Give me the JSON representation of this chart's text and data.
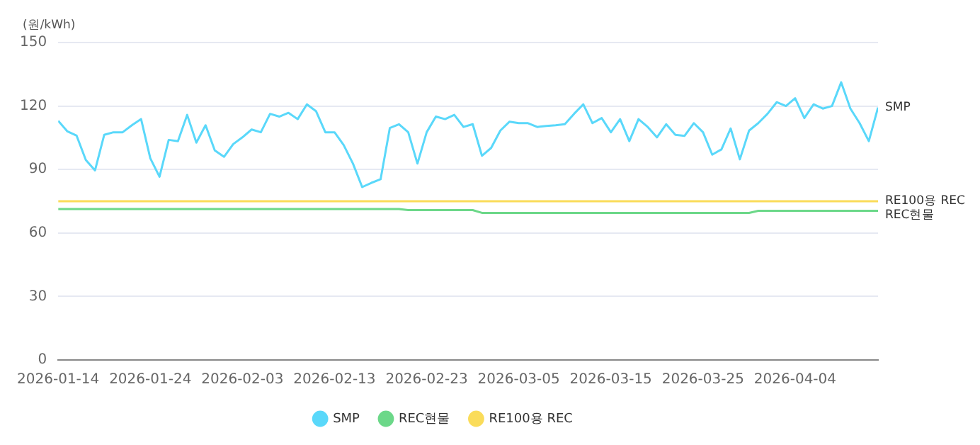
{
  "chart_data": {
    "type": "line",
    "ylabel": "(원/kWh)",
    "x": [
      "2026-01-14",
      "2026-01-15",
      "2026-01-16",
      "2026-01-17",
      "2026-01-18",
      "2026-01-19",
      "2026-01-20",
      "2026-01-21",
      "2026-01-22",
      "2026-01-23",
      "2026-01-24",
      "2026-01-25",
      "2026-01-26",
      "2026-01-27",
      "2026-01-28",
      "2026-01-29",
      "2026-01-30",
      "2026-01-31",
      "2026-02-01",
      "2026-02-02",
      "2026-02-03",
      "2026-02-04",
      "2026-02-05",
      "2026-02-06",
      "2026-02-07",
      "2026-02-08",
      "2026-02-09",
      "2026-02-10",
      "2026-02-11",
      "2026-02-12",
      "2026-02-13",
      "2026-02-14",
      "2026-02-15",
      "2026-02-16",
      "2026-02-17",
      "2026-02-18",
      "2026-02-19",
      "2026-02-20",
      "2026-02-21",
      "2026-02-22",
      "2026-02-23",
      "2026-02-24",
      "2026-02-25",
      "2026-02-26",
      "2026-02-27",
      "2026-02-28",
      "2026-03-01",
      "2026-03-02",
      "2026-03-03",
      "2026-03-04",
      "2026-03-05",
      "2026-03-06",
      "2026-03-07",
      "2026-03-08",
      "2026-03-09",
      "2026-03-10",
      "2026-03-11",
      "2026-03-12",
      "2026-03-13",
      "2026-03-14",
      "2026-03-15",
      "2026-03-16",
      "2026-03-17",
      "2026-03-18",
      "2026-03-19",
      "2026-03-20",
      "2026-03-21",
      "2026-03-22",
      "2026-03-23",
      "2026-03-24",
      "2026-03-25",
      "2026-03-26",
      "2026-03-27",
      "2026-03-28",
      "2026-03-29",
      "2026-03-30",
      "2026-03-31",
      "2026-04-01",
      "2026-04-02",
      "2026-04-03",
      "2026-04-04",
      "2026-04-05",
      "2026-04-06",
      "2026-04-07",
      "2026-04-08",
      "2026-04-09",
      "2026-04-10",
      "2026-04-11",
      "2026-04-12",
      "2026-04-13"
    ],
    "series": [
      {
        "name": "SMP",
        "color": "#5ad8fa",
        "values": [
          113,
          108,
          106,
          94.5,
          89.6,
          106.4,
          107.6,
          107.6,
          110.9,
          113.8,
          95.3,
          86.6,
          104,
          103.4,
          115.8,
          102.7,
          110.9,
          99,
          96,
          102,
          105.2,
          108.9,
          107.6,
          116.3,
          115,
          116.8,
          113.8,
          120.8,
          117.5,
          107.6,
          107.6,
          101.5,
          92.8,
          81.7,
          83.7,
          85.4,
          109.6,
          111.4,
          107.6,
          92.8,
          107.6,
          115,
          113.8,
          115.8,
          110.1,
          111.4,
          96.5,
          100.2,
          108.4,
          112.6,
          111.9,
          111.9,
          110.1,
          110.6,
          110.9,
          111.4,
          116.3,
          120.8,
          111.9,
          114.3,
          107.6,
          113.8,
          103.4,
          113.8,
          110.1,
          105.2,
          111.4,
          106.4,
          105.9,
          111.9,
          107.6,
          97,
          99.5,
          109.4,
          94.8,
          108.4,
          111.9,
          116.3,
          121.8,
          120,
          123.7,
          114.3,
          120.8,
          118.8,
          120,
          131.2,
          118.8,
          111.9,
          103.4,
          119.3
        ]
      },
      {
        "name": "REC현물",
        "color": "#6cd889",
        "values": [
          71.3,
          71.3,
          71.3,
          71.3,
          71.3,
          71.3,
          71.3,
          71.3,
          71.3,
          71.3,
          71.3,
          71.3,
          71.3,
          71.3,
          71.3,
          71.3,
          71.3,
          71.3,
          71.3,
          71.3,
          71.3,
          71.3,
          71.3,
          71.3,
          71.3,
          71.3,
          71.3,
          71.3,
          71.3,
          71.3,
          71.3,
          71.3,
          71.3,
          71.3,
          71.3,
          71.3,
          71.3,
          71.3,
          70.8,
          70.8,
          70.8,
          70.8,
          70.8,
          70.8,
          70.8,
          70.8,
          69.5,
          69.5,
          69.5,
          69.5,
          69.5,
          69.5,
          69.5,
          69.5,
          69.5,
          69.5,
          69.5,
          69.5,
          69.5,
          69.5,
          69.5,
          69.5,
          69.5,
          69.5,
          69.5,
          69.5,
          69.5,
          69.5,
          69.5,
          69.5,
          69.5,
          69.5,
          69.5,
          69.5,
          69.5,
          69.5,
          70.5,
          70.5,
          70.5,
          70.5,
          70.5,
          70.5,
          70.5,
          70.5,
          70.5,
          70.5,
          70.5,
          70.5,
          70.5,
          70.5
        ]
      },
      {
        "name": "RE100용 REC",
        "color": "#fadc5a",
        "values": [
          75,
          75,
          75,
          75,
          75,
          75,
          75,
          75,
          75,
          75,
          75,
          75,
          75,
          75,
          75,
          75,
          75,
          75,
          75,
          75,
          75,
          75,
          75,
          75,
          75,
          75,
          75,
          75,
          75,
          75,
          75,
          75,
          75,
          75,
          75,
          75,
          75,
          75,
          75,
          75,
          75,
          75,
          75,
          75,
          75,
          75,
          75,
          75,
          75,
          75,
          75,
          75,
          75,
          75,
          75,
          75,
          75,
          75,
          75,
          75,
          75,
          75,
          75,
          75,
          75,
          75,
          75,
          75,
          75,
          75,
          75,
          75,
          75,
          75,
          75,
          75,
          75,
          75,
          75,
          75,
          75,
          75,
          75,
          75,
          75,
          75,
          75,
          75,
          75,
          75
        ]
      }
    ],
    "xlim": [
      "2026-01-14",
      "2026-04-13"
    ],
    "xticks": [
      "2026-01-14",
      "2026-01-24",
      "2026-02-03",
      "2026-02-13",
      "2026-02-23",
      "2026-03-05",
      "2026-03-15",
      "2026-03-25",
      "2026-04-04"
    ],
    "ylim": [
      0,
      150
    ],
    "yticks": [
      0,
      30,
      60,
      90,
      120,
      150
    ],
    "grid": "y",
    "legend": "bottom",
    "marker": "none",
    "line_style": "solid"
  }
}
